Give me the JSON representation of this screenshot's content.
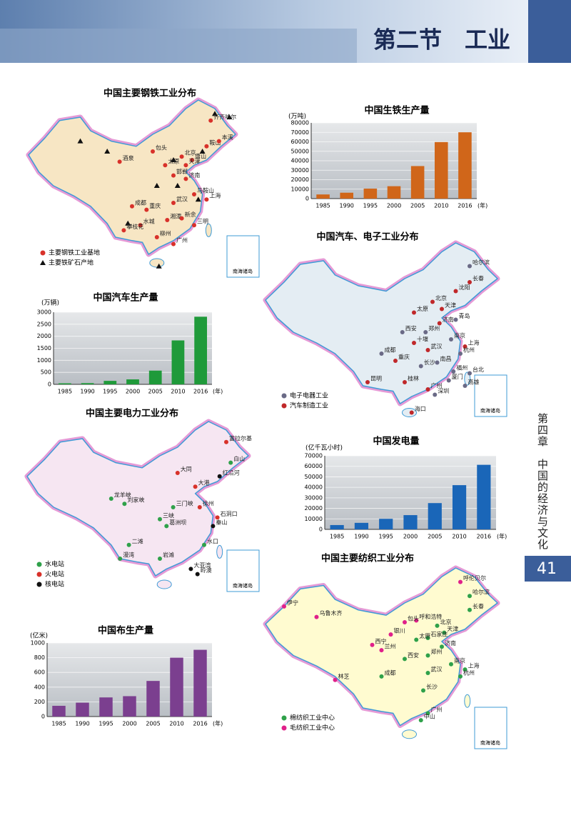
{
  "header": {
    "title": "第二节　工业"
  },
  "side": {
    "chapter": "第四章　中国的经济与文化",
    "page": "41"
  },
  "maps": [
    {
      "title": "中国主要钢铁工业分布",
      "legend": [
        "主要钢铁工业基地",
        "主要铁矿石产地"
      ],
      "inset": "南海诸岛",
      "cities": [
        "齐齐哈尔",
        "鞍山",
        "本溪",
        "包头",
        "北京",
        "唐山",
        "天津",
        "太原",
        "邯郸",
        "酒泉",
        "济南",
        "武汉",
        "马鞍山",
        "上海",
        "成都",
        "重庆",
        "湘潭",
        "新余",
        "三明",
        "水城",
        "攀枝花",
        "柳州",
        "广州"
      ]
    },
    {
      "title": "中国汽车、电子工业分布",
      "legend": [
        "电子电器工业",
        "汽车制造工业"
      ],
      "inset": "南海诸岛",
      "cities": [
        "哈尔滨",
        "长春",
        "沈阳",
        "北京",
        "天津",
        "青岛",
        "太原",
        "郑州",
        "西安",
        "济南",
        "南京",
        "上海",
        "十堰",
        "武汉",
        "成都",
        "重庆",
        "长沙",
        "南昌",
        "杭州",
        "福州",
        "厦门",
        "桂林",
        "广州",
        "深圳",
        "昆明",
        "海口",
        "台北",
        "高雄"
      ]
    },
    {
      "title": "中国主要电力工业分布",
      "legend": [
        "水电站",
        "火电站",
        "核电站"
      ],
      "inset": "南海诸岛",
      "cities": [
        "富拉尔基",
        "白山",
        "红沿河",
        "大同",
        "大港",
        "龙羊峡",
        "刘家峡",
        "三门峡",
        "徐州",
        "石洞口",
        "秦山",
        "葛洲坝",
        "三峡",
        "二滩",
        "水口",
        "岩滩",
        "漫湾",
        "大亚湾",
        "岭澳"
      ]
    },
    {
      "title": "中国主要纺织工业分布",
      "legend": [
        "棉纺织工业中心",
        "毛纺织工业中心"
      ],
      "inset": "南海诸岛",
      "cities": [
        "呼伦贝尔",
        "哈尔滨",
        "伊宁",
        "乌鲁木齐",
        "长春",
        "呼和浩特",
        "包头",
        "北京",
        "天津",
        "石家庄",
        "太原",
        "银川",
        "西宁",
        "兰州",
        "济南",
        "郑州",
        "西安",
        "南京",
        "上海",
        "成都",
        "武汉",
        "杭州",
        "林芝",
        "长沙",
        "广州",
        "中山"
      ]
    }
  ],
  "chart_data": [
    {
      "type": "bar",
      "title": "中国生铁生产量",
      "y_label": "(万吨)",
      "x_label": "(年)",
      "categories": [
        "1985",
        "1990",
        "1995",
        "2000",
        "2005",
        "2010",
        "2016"
      ],
      "values": [
        4384,
        6238,
        10529,
        13101,
        34375,
        59733,
        70074
      ],
      "color": "#d0661a",
      "ylim": [
        0,
        80000
      ],
      "yticks": [
        0,
        10000,
        20000,
        30000,
        40000,
        50000,
        60000,
        70000,
        80000
      ],
      "grid": true
    },
    {
      "type": "bar",
      "title": "中国汽车生产量",
      "y_label": "(万辆)",
      "x_label": "(年)",
      "categories": [
        "1985",
        "1990",
        "1995",
        "2000",
        "2005",
        "2010",
        "2016"
      ],
      "values": [
        44,
        51,
        145,
        207,
        571,
        1827,
        2812
      ],
      "color": "#1f9a3a",
      "ylim": [
        0,
        3000
      ],
      "yticks": [
        0,
        500,
        1000,
        1500,
        2000,
        2500,
        3000
      ],
      "grid": true
    },
    {
      "type": "bar",
      "title": "中国发电量",
      "y_label": "(亿千瓦小时)",
      "x_label": "(年)",
      "categories": [
        "1985",
        "1990",
        "1995",
        "2000",
        "2005",
        "2010",
        "2016"
      ],
      "values": [
        4107,
        6212,
        10070,
        13556,
        25003,
        42072,
        61425
      ],
      "color": "#1a66b8",
      "ylim": [
        0,
        70000
      ],
      "yticks": [
        0,
        10000,
        20000,
        30000,
        40000,
        50000,
        60000,
        70000
      ],
      "grid": true
    },
    {
      "type": "bar",
      "title": "中国布生产量",
      "y_label": "(亿米)",
      "x_label": "(年)",
      "categories": [
        "1985",
        "1990",
        "1995",
        "2000",
        "2005",
        "2010",
        "2016"
      ],
      "values": [
        146,
        189,
        260,
        277,
        484,
        800,
        907
      ],
      "color": "#7b3f8f",
      "ylim": [
        0,
        1000
      ],
      "yticks": [
        0,
        200,
        400,
        600,
        800,
        1000
      ],
      "grid": true
    }
  ]
}
